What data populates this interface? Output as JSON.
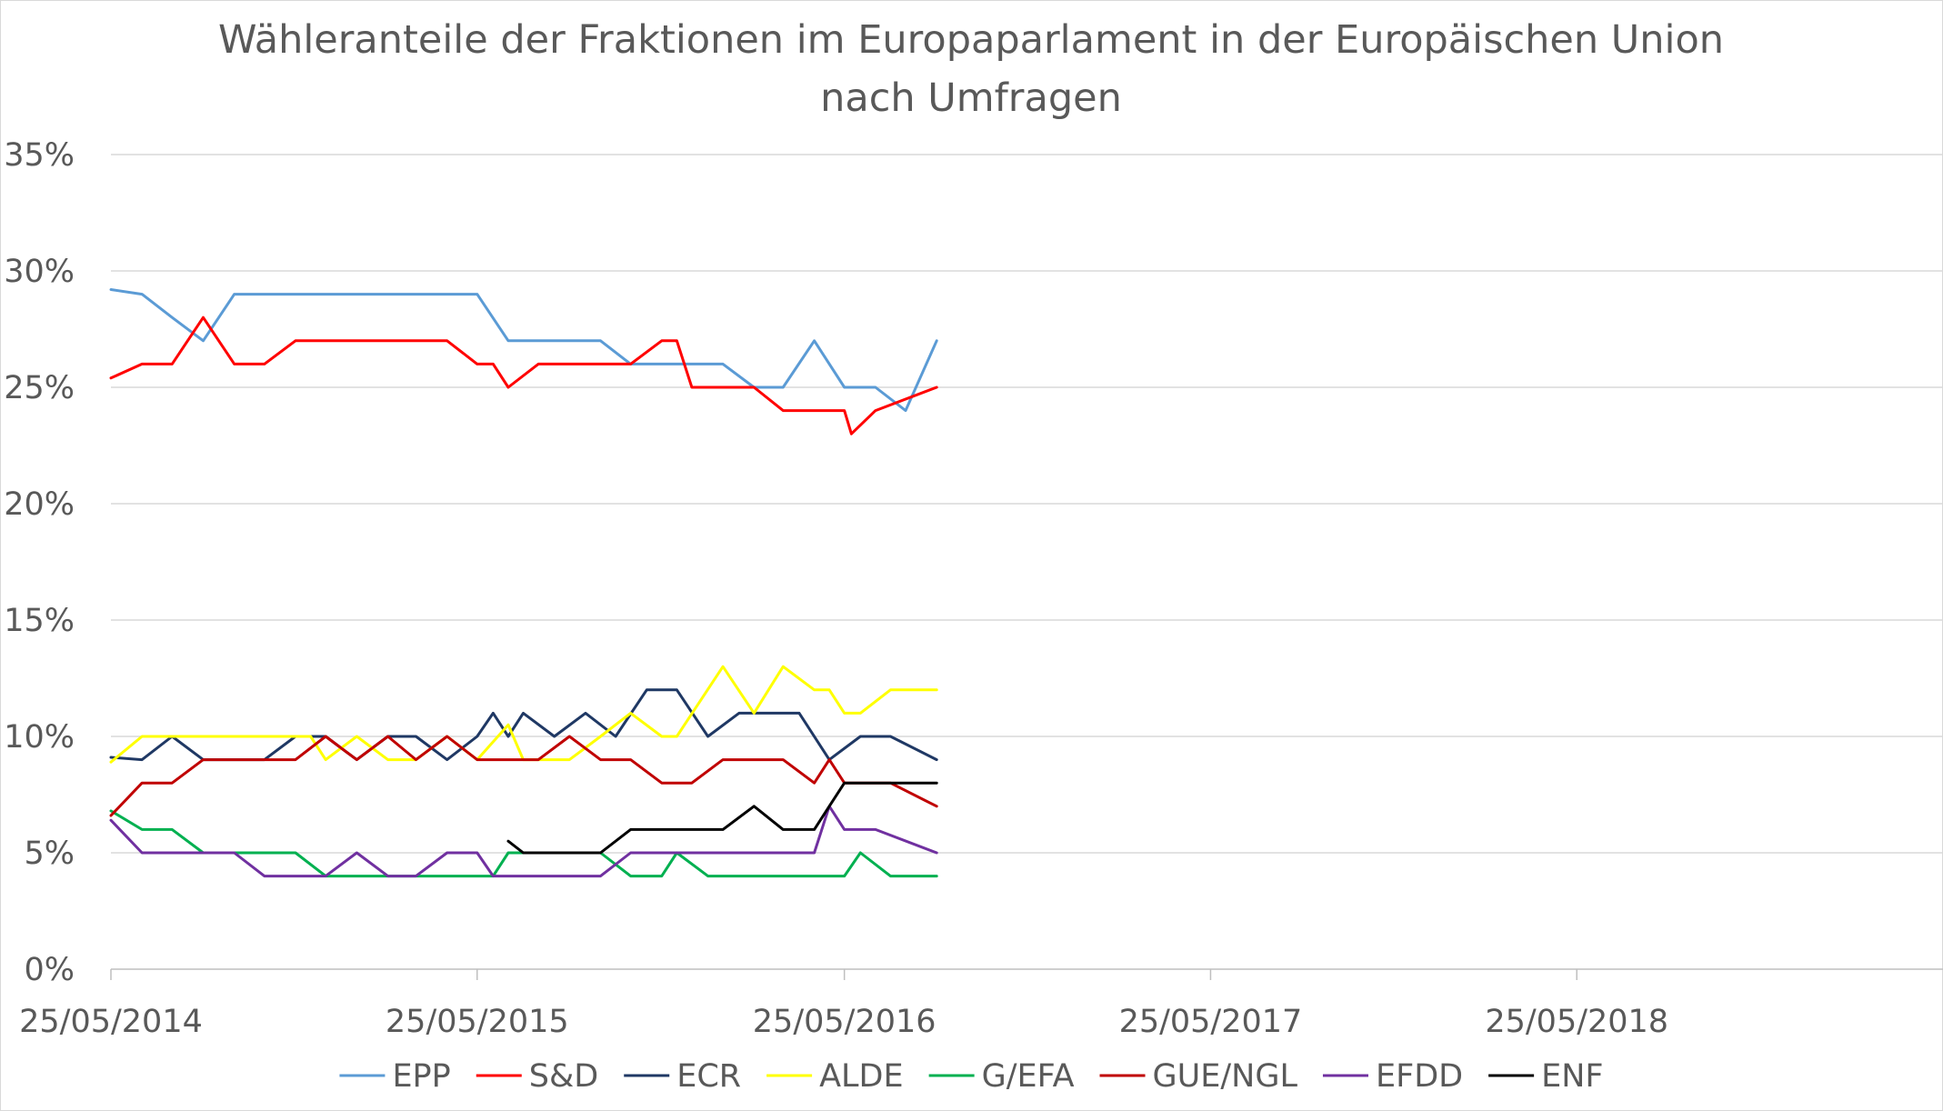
{
  "chart_data": {
    "type": "line",
    "title_lines": [
      "Wähleranteile der Fraktionen im Europaparlament in der Europäischen Union",
      "nach Umfragen"
    ],
    "x_axis": {
      "type": "date",
      "range": [
        "2014-05-25",
        "2019-05-25"
      ],
      "tick_dates": [
        "2014-05-25",
        "2015-05-25",
        "2016-05-25",
        "2017-05-25",
        "2018-05-25"
      ],
      "tick_labels": [
        "25/05/2014",
        "25/05/2015",
        "25/05/2016",
        "25/05/2017",
        "25/05/2018"
      ],
      "gridlines": false
    },
    "y_axis": {
      "range": [
        0,
        35
      ],
      "ticks": [
        0,
        5,
        10,
        15,
        20,
        25,
        30,
        35
      ],
      "tick_labels": [
        "0%",
        "5%",
        "10%",
        "15%",
        "20%",
        "25%",
        "30%",
        "35%"
      ],
      "gridlines": true
    },
    "legend_position": "bottom",
    "series": [
      {
        "name": "EPP",
        "color": "#5B9BD5",
        "points": [
          [
            "2014-05-25",
            29.2
          ],
          [
            "2014-06-25",
            29
          ],
          [
            "2014-07-25",
            28
          ],
          [
            "2014-08-25",
            27
          ],
          [
            "2014-09-25",
            29
          ],
          [
            "2014-10-25",
            29
          ],
          [
            "2014-11-25",
            29
          ],
          [
            "2014-12-25",
            29
          ],
          [
            "2015-01-25",
            29
          ],
          [
            "2015-02-25",
            29
          ],
          [
            "2015-03-25",
            29
          ],
          [
            "2015-04-25",
            29
          ],
          [
            "2015-05-25",
            29
          ],
          [
            "2015-06-25",
            27
          ],
          [
            "2015-07-25",
            27
          ],
          [
            "2015-08-25",
            27
          ],
          [
            "2015-09-25",
            27
          ],
          [
            "2015-10-25",
            26
          ],
          [
            "2015-11-25",
            26
          ],
          [
            "2015-12-25",
            26
          ],
          [
            "2016-01-25",
            26
          ],
          [
            "2016-02-25",
            25
          ],
          [
            "2016-03-25",
            25
          ],
          [
            "2016-04-25",
            27
          ],
          [
            "2016-05-25",
            25
          ],
          [
            "2016-06-25",
            25
          ],
          [
            "2016-07-25",
            24
          ],
          [
            "2016-08-25",
            27
          ]
        ]
      },
      {
        "name": "S&D",
        "color": "#FF0000",
        "points": [
          [
            "2014-05-25",
            25.4
          ],
          [
            "2014-06-25",
            26
          ],
          [
            "2014-07-25",
            26
          ],
          [
            "2014-08-25",
            28
          ],
          [
            "2014-09-25",
            26
          ],
          [
            "2014-10-25",
            26
          ],
          [
            "2014-11-25",
            27
          ],
          [
            "2014-12-25",
            27
          ],
          [
            "2015-01-25",
            27
          ],
          [
            "2015-02-25",
            27
          ],
          [
            "2015-03-25",
            27
          ],
          [
            "2015-04-25",
            27
          ],
          [
            "2015-05-25",
            26
          ],
          [
            "2015-06-10",
            26
          ],
          [
            "2015-06-25",
            25
          ],
          [
            "2015-07-25",
            26
          ],
          [
            "2015-08-25",
            26
          ],
          [
            "2015-09-25",
            26
          ],
          [
            "2015-10-25",
            26
          ],
          [
            "2015-11-25",
            27
          ],
          [
            "2015-12-10",
            27
          ],
          [
            "2015-12-25",
            25
          ],
          [
            "2016-01-25",
            25
          ],
          [
            "2016-02-25",
            25
          ],
          [
            "2016-03-25",
            24
          ],
          [
            "2016-04-25",
            24
          ],
          [
            "2016-05-25",
            24
          ],
          [
            "2016-06-01",
            23
          ],
          [
            "2016-06-25",
            24
          ],
          [
            "2016-08-25",
            25
          ]
        ]
      },
      {
        "name": "ECR",
        "color": "#1F3864",
        "points": [
          [
            "2014-05-25",
            9.1
          ],
          [
            "2014-06-25",
            9
          ],
          [
            "2014-07-25",
            10
          ],
          [
            "2014-08-25",
            9
          ],
          [
            "2014-09-25",
            9
          ],
          [
            "2014-10-25",
            9
          ],
          [
            "2014-11-25",
            10
          ],
          [
            "2014-12-25",
            10
          ],
          [
            "2015-01-25",
            9
          ],
          [
            "2015-02-25",
            10
          ],
          [
            "2015-03-25",
            10
          ],
          [
            "2015-04-25",
            9
          ],
          [
            "2015-05-25",
            10
          ],
          [
            "2015-06-10",
            11
          ],
          [
            "2015-06-25",
            10
          ],
          [
            "2015-07-10",
            11
          ],
          [
            "2015-08-10",
            10
          ],
          [
            "2015-09-10",
            11
          ],
          [
            "2015-10-10",
            10
          ],
          [
            "2015-11-10",
            12
          ],
          [
            "2015-12-10",
            12
          ],
          [
            "2016-01-10",
            10
          ],
          [
            "2016-02-10",
            11
          ],
          [
            "2016-03-10",
            11
          ],
          [
            "2016-04-10",
            11
          ],
          [
            "2016-05-10",
            9
          ],
          [
            "2016-06-10",
            10
          ],
          [
            "2016-07-10",
            10
          ],
          [
            "2016-08-25",
            9
          ]
        ]
      },
      {
        "name": "ALDE",
        "color": "#FFFF00",
        "points": [
          [
            "2014-05-25",
            8.9
          ],
          [
            "2014-06-25",
            10
          ],
          [
            "2014-07-25",
            10
          ],
          [
            "2014-08-25",
            10
          ],
          [
            "2014-09-25",
            10
          ],
          [
            "2014-10-25",
            10
          ],
          [
            "2014-11-25",
            10
          ],
          [
            "2014-12-10",
            10
          ],
          [
            "2014-12-25",
            9
          ],
          [
            "2015-01-25",
            10
          ],
          [
            "2015-02-25",
            9
          ],
          [
            "2015-03-25",
            9
          ],
          [
            "2015-04-25",
            10
          ],
          [
            "2015-05-25",
            9
          ],
          [
            "2015-06-25",
            10.5
          ],
          [
            "2015-07-10",
            9
          ],
          [
            "2015-08-25",
            9
          ],
          [
            "2015-09-25",
            10
          ],
          [
            "2015-10-25",
            11
          ],
          [
            "2015-11-25",
            10
          ],
          [
            "2015-12-10",
            10
          ],
          [
            "2016-01-25",
            13
          ],
          [
            "2016-02-25",
            11
          ],
          [
            "2016-03-25",
            13
          ],
          [
            "2016-04-25",
            12
          ],
          [
            "2016-05-10",
            12
          ],
          [
            "2016-05-25",
            11
          ],
          [
            "2016-06-10",
            11
          ],
          [
            "2016-07-10",
            12
          ],
          [
            "2016-08-25",
            12
          ]
        ]
      },
      {
        "name": "G/EFA",
        "color": "#00B050",
        "points": [
          [
            "2014-05-25",
            6.8
          ],
          [
            "2014-06-25",
            6
          ],
          [
            "2014-07-25",
            6
          ],
          [
            "2014-08-25",
            5
          ],
          [
            "2014-09-25",
            5
          ],
          [
            "2014-10-25",
            5
          ],
          [
            "2014-11-25",
            5
          ],
          [
            "2014-12-25",
            4
          ],
          [
            "2015-01-25",
            4
          ],
          [
            "2015-02-25",
            4
          ],
          [
            "2015-03-25",
            4
          ],
          [
            "2015-04-25",
            4
          ],
          [
            "2015-05-25",
            4
          ],
          [
            "2015-06-10",
            4
          ],
          [
            "2015-06-25",
            5
          ],
          [
            "2015-07-25",
            5
          ],
          [
            "2015-08-25",
            5
          ],
          [
            "2015-09-25",
            5
          ],
          [
            "2015-10-25",
            4
          ],
          [
            "2015-11-25",
            4
          ],
          [
            "2015-12-10",
            5
          ],
          [
            "2016-01-10",
            4
          ],
          [
            "2016-02-10",
            4
          ],
          [
            "2016-03-10",
            4
          ],
          [
            "2016-04-10",
            4
          ],
          [
            "2016-05-10",
            4
          ],
          [
            "2016-05-25",
            4
          ],
          [
            "2016-06-10",
            5
          ],
          [
            "2016-07-10",
            4
          ],
          [
            "2016-08-25",
            4
          ]
        ]
      },
      {
        "name": "GUE/NGL",
        "color": "#C00000",
        "points": [
          [
            "2014-05-25",
            6.6
          ],
          [
            "2014-06-25",
            8
          ],
          [
            "2014-07-25",
            8
          ],
          [
            "2014-08-25",
            9
          ],
          [
            "2014-09-25",
            9
          ],
          [
            "2014-10-25",
            9
          ],
          [
            "2014-11-25",
            9
          ],
          [
            "2014-12-25",
            10
          ],
          [
            "2015-01-25",
            9
          ],
          [
            "2015-02-25",
            10
          ],
          [
            "2015-03-25",
            9
          ],
          [
            "2015-04-25",
            10
          ],
          [
            "2015-05-25",
            9
          ],
          [
            "2015-06-25",
            9
          ],
          [
            "2015-07-25",
            9
          ],
          [
            "2015-08-25",
            10
          ],
          [
            "2015-09-25",
            9
          ],
          [
            "2015-10-25",
            9
          ],
          [
            "2015-11-25",
            8
          ],
          [
            "2015-12-25",
            8
          ],
          [
            "2016-01-25",
            9
          ],
          [
            "2016-02-25",
            9
          ],
          [
            "2016-03-25",
            9
          ],
          [
            "2016-04-25",
            8
          ],
          [
            "2016-05-10",
            9
          ],
          [
            "2016-05-25",
            8
          ],
          [
            "2016-06-25",
            8
          ],
          [
            "2016-07-10",
            8
          ],
          [
            "2016-08-25",
            7
          ]
        ]
      },
      {
        "name": "EFDD",
        "color": "#7030A0",
        "points": [
          [
            "2014-05-25",
            6.4
          ],
          [
            "2014-06-25",
            5
          ],
          [
            "2014-07-25",
            5
          ],
          [
            "2014-08-25",
            5
          ],
          [
            "2014-09-25",
            5
          ],
          [
            "2014-10-25",
            4
          ],
          [
            "2014-11-25",
            4
          ],
          [
            "2014-12-25",
            4
          ],
          [
            "2015-01-25",
            5
          ],
          [
            "2015-02-25",
            4
          ],
          [
            "2015-03-25",
            4
          ],
          [
            "2015-04-25",
            5
          ],
          [
            "2015-05-25",
            5
          ],
          [
            "2015-06-10",
            4
          ],
          [
            "2015-07-25",
            4
          ],
          [
            "2015-08-25",
            4
          ],
          [
            "2015-09-25",
            4
          ],
          [
            "2015-10-25",
            5
          ],
          [
            "2015-11-25",
            5
          ],
          [
            "2015-12-25",
            5
          ],
          [
            "2016-01-25",
            5
          ],
          [
            "2016-02-25",
            5
          ],
          [
            "2016-03-25",
            5
          ],
          [
            "2016-04-25",
            5
          ],
          [
            "2016-05-10",
            7
          ],
          [
            "2016-05-25",
            6
          ],
          [
            "2016-06-25",
            6
          ],
          [
            "2016-08-25",
            5
          ]
        ]
      },
      {
        "name": "ENF",
        "color": "#000000",
        "points": [
          [
            "2015-06-25",
            5.5
          ],
          [
            "2015-07-10",
            5
          ],
          [
            "2015-08-25",
            5
          ],
          [
            "2015-09-25",
            5
          ],
          [
            "2015-10-25",
            6
          ],
          [
            "2015-11-25",
            6
          ],
          [
            "2015-12-25",
            6
          ],
          [
            "2016-01-25",
            6
          ],
          [
            "2016-02-25",
            7
          ],
          [
            "2016-03-25",
            6
          ],
          [
            "2016-04-25",
            6
          ],
          [
            "2016-05-10",
            7
          ],
          [
            "2016-05-25",
            8
          ],
          [
            "2016-06-25",
            8
          ],
          [
            "2016-08-25",
            8
          ]
        ]
      }
    ]
  }
}
